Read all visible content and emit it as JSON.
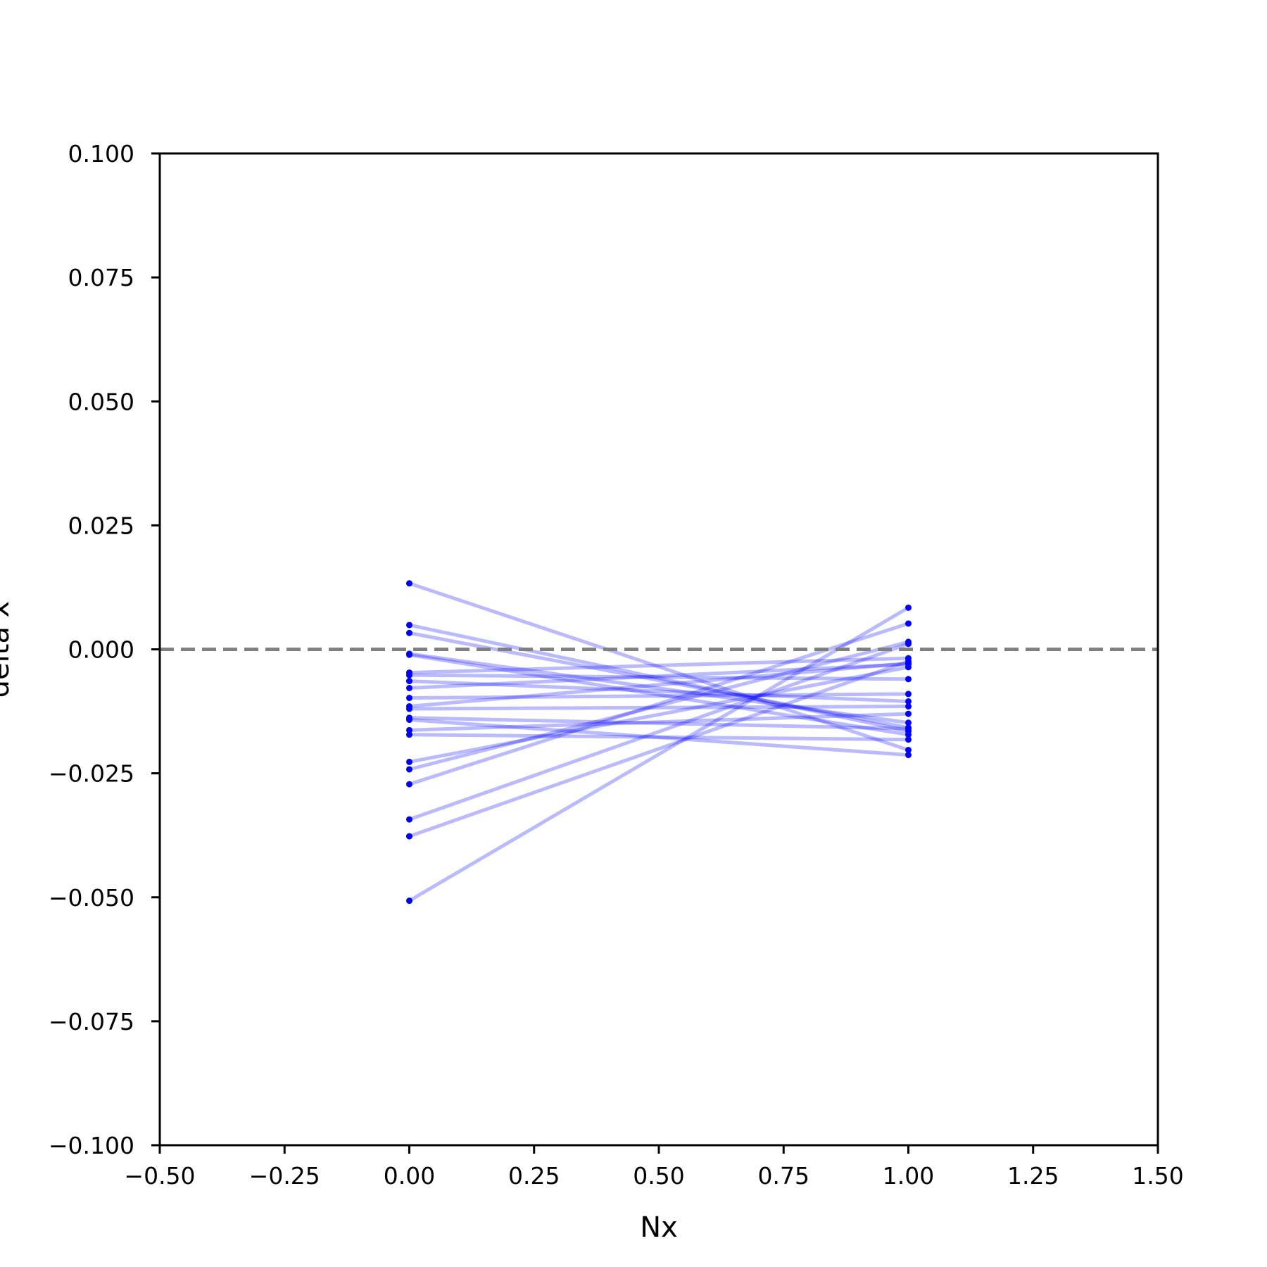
{
  "chart_data": {
    "type": "line",
    "title": "",
    "xlabel": "Nx",
    "ylabel": "delta x",
    "xlim": [
      -0.5,
      1.5
    ],
    "ylim": [
      -0.1,
      0.1
    ],
    "xticks": [
      -0.5,
      -0.25,
      0.0,
      0.25,
      0.5,
      0.75,
      1.0,
      1.25,
      1.5
    ],
    "xtick_labels": [
      "−0.50",
      "−0.25",
      "0.00",
      "0.25",
      "0.50",
      "0.75",
      "1.00",
      "1.25",
      "1.50"
    ],
    "yticks": [
      0.1,
      0.075,
      0.05,
      0.025,
      0.0,
      -0.025,
      -0.05,
      -0.075,
      -0.1
    ],
    "ytick_labels": [
      "0.100",
      "0.075",
      "0.050",
      "0.025",
      "0.000",
      "−0.025",
      "−0.050",
      "−0.075",
      "−0.100"
    ],
    "grid": false,
    "legend": "none",
    "reference_line": {
      "y": 0.0,
      "style": "dashed",
      "color": "#808080"
    },
    "series_color": "#0000ff",
    "line_alpha": 0.27,
    "x": [
      0,
      1
    ],
    "pairs": [
      [
        0.0133,
        -0.0203
      ],
      [
        0.0049,
        -0.0165
      ],
      [
        0.0033,
        -0.0158
      ],
      [
        -0.0009,
        -0.0148
      ],
      [
        -0.0011,
        -0.0172
      ],
      [
        -0.0047,
        -0.0018
      ],
      [
        -0.0052,
        -0.006
      ],
      [
        -0.0064,
        -0.0105
      ],
      [
        -0.0078,
        -0.003
      ],
      [
        -0.0098,
        -0.009
      ],
      [
        -0.0115,
        -0.0028
      ],
      [
        -0.012,
        -0.0115
      ],
      [
        -0.0138,
        -0.016
      ],
      [
        -0.0142,
        -0.0213
      ],
      [
        -0.0163,
        -0.013
      ],
      [
        -0.0172,
        -0.0182
      ],
      [
        -0.0227,
        -0.0036
      ],
      [
        -0.0242,
        0.0015
      ],
      [
        -0.0272,
        0.0052
      ],
      [
        -0.0343,
        0.0011
      ],
      [
        -0.0377,
        -0.0024
      ],
      [
        -0.0507,
        0.0084
      ]
    ]
  }
}
